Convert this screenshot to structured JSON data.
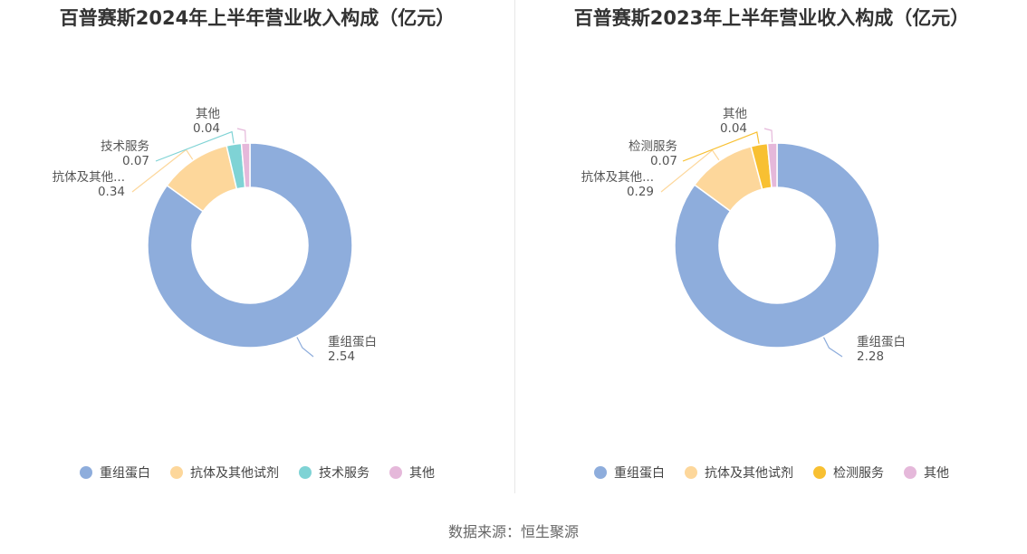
{
  "source": "数据来源：恒生聚源",
  "colors": {
    "重组蛋白": "#8eaddc",
    "抗体及其他试剂": "#fdd79b",
    "技术服务": "#7fd3d5",
    "检测服务": "#f8c032",
    "其他": "#e5b8da"
  },
  "chart_data": [
    {
      "type": "pie",
      "title": "百普赛斯2024年上半年营业收入构成（亿元）",
      "categories": [
        "重组蛋白",
        "抗体及其他试剂",
        "技术服务",
        "其他"
      ],
      "values": [
        2.54,
        0.34,
        0.07,
        0.04
      ],
      "slice_labels": [
        "重组蛋白",
        "抗体及其他...",
        "技术服务",
        "其他"
      ],
      "legend": [
        "重组蛋白",
        "抗体及其他试剂",
        "技术服务",
        "其他"
      ],
      "legend_position": "bottom",
      "donut": true
    },
    {
      "type": "pie",
      "title": "百普赛斯2023年上半年营业收入构成（亿元）",
      "categories": [
        "重组蛋白",
        "抗体及其他试剂",
        "检测服务",
        "其他"
      ],
      "values": [
        2.28,
        0.29,
        0.07,
        0.04
      ],
      "slice_labels": [
        "重组蛋白",
        "抗体及其他...",
        "检测服务",
        "其他"
      ],
      "legend": [
        "重组蛋白",
        "抗体及其他试剂",
        "检测服务",
        "其他"
      ],
      "legend_position": "bottom",
      "donut": true
    }
  ]
}
